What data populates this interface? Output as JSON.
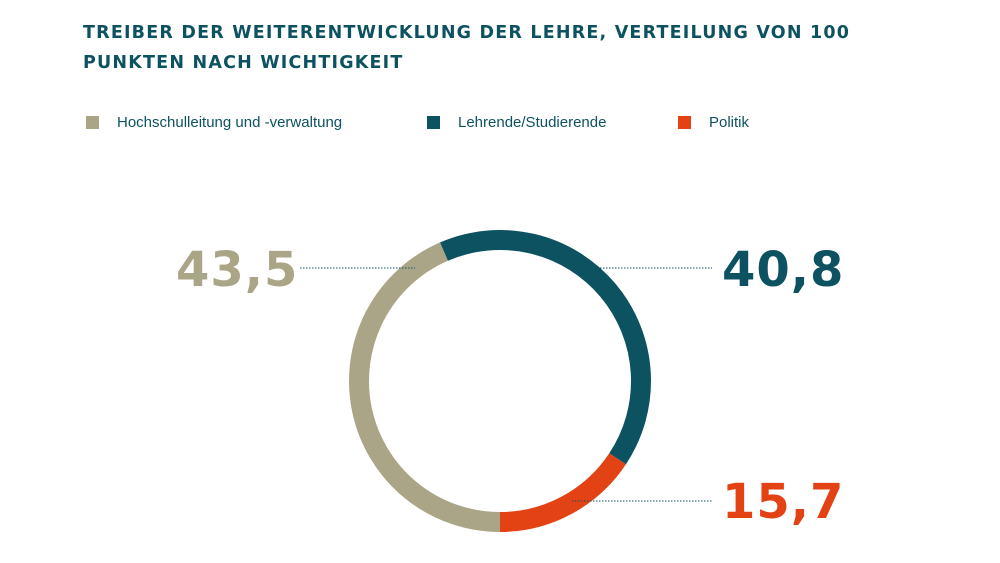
{
  "chart_data": {
    "type": "pie",
    "variant": "donut",
    "title": "TREIBER DER WEITERENTWICKLUNG DER LEHRE, VERTEILUNG VON 100 PUNKTEN NACH WICHTIGKEIT",
    "categories": [
      "Hochschulleitung und -verwaltung",
      "Lehrende/Studierende",
      "Politik"
    ],
    "values": [
      43.5,
      40.8,
      15.7
    ],
    "labels": [
      "43,5",
      "40,8",
      "15,7"
    ],
    "colors": [
      "#aba588",
      "#0d5261",
      "#e34215"
    ],
    "legend_position": "top"
  }
}
